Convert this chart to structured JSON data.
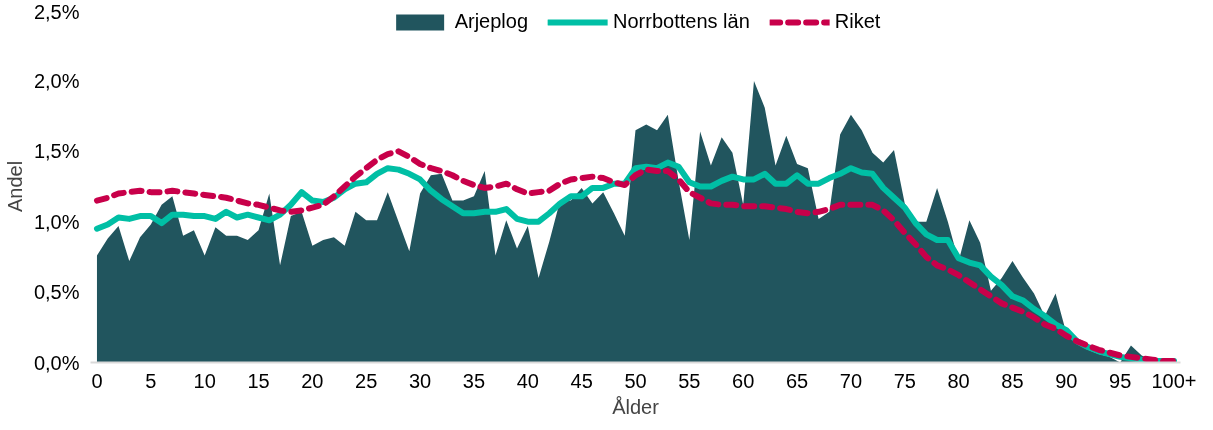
{
  "chart_data": {
    "type": "line",
    "xlabel": "Ålder",
    "ylabel": "Andel",
    "x": [
      0,
      1,
      2,
      3,
      4,
      5,
      6,
      7,
      8,
      9,
      10,
      11,
      12,
      13,
      14,
      15,
      16,
      17,
      18,
      19,
      20,
      21,
      22,
      23,
      24,
      25,
      26,
      27,
      28,
      29,
      30,
      31,
      32,
      33,
      34,
      35,
      36,
      37,
      38,
      39,
      40,
      41,
      42,
      43,
      44,
      45,
      46,
      47,
      48,
      49,
      50,
      51,
      52,
      53,
      54,
      55,
      56,
      57,
      58,
      59,
      60,
      61,
      62,
      63,
      64,
      65,
      66,
      67,
      68,
      69,
      70,
      71,
      72,
      73,
      74,
      75,
      76,
      77,
      78,
      79,
      80,
      81,
      82,
      83,
      84,
      85,
      86,
      87,
      88,
      89,
      90,
      91,
      92,
      93,
      94,
      95,
      96,
      97,
      98,
      99,
      100
    ],
    "xlim": [
      -0.6,
      100.6
    ],
    "xticks": [
      0,
      5,
      10,
      15,
      20,
      25,
      30,
      35,
      40,
      45,
      50,
      55,
      60,
      65,
      70,
      75,
      80,
      85,
      90,
      95,
      {
        "value": 100,
        "label": "100+"
      }
    ],
    "ylim": [
      0,
      2.5
    ],
    "yticks": [
      {
        "value": 0,
        "label": "0,0%"
      },
      {
        "value": 0.5,
        "label": "0,5%"
      },
      {
        "value": 1,
        "label": "1,0%"
      },
      {
        "value": 1.5,
        "label": "1,5%"
      },
      {
        "value": 2,
        "label": "2,0%"
      },
      {
        "value": 2.5,
        "label": "2,5%"
      }
    ],
    "legend": "top",
    "grid": false,
    "series": [
      {
        "name": "Arjeplog",
        "type": "area",
        "color": "#21555e",
        "values": [
          0.76,
          0.88,
          0.97,
          0.72,
          0.89,
          0.98,
          1.12,
          1.18,
          0.9,
          0.94,
          0.76,
          0.96,
          0.9,
          0.9,
          0.87,
          0.94,
          1.2,
          0.69,
          1.04,
          1.07,
          0.83,
          0.87,
          0.89,
          0.83,
          1.07,
          1.01,
          1.01,
          1.21,
          1.0,
          0.79,
          1.2,
          1.33,
          1.34,
          1.15,
          1.15,
          1.18,
          1.36,
          0.76,
          1.01,
          0.81,
          0.97,
          0.6,
          0.86,
          1.15,
          1.15,
          1.24,
          1.13,
          1.21,
          1.06,
          0.9,
          1.65,
          1.69,
          1.65,
          1.76,
          1.29,
          0.87,
          1.64,
          1.4,
          1.6,
          1.49,
          1.12,
          2.0,
          1.81,
          1.4,
          1.61,
          1.41,
          1.38,
          1.02,
          1.07,
          1.62,
          1.76,
          1.65,
          1.49,
          1.42,
          1.51,
          1.13,
          1.0,
          1.0,
          1.24,
          1.0,
          0.72,
          1.01,
          0.85,
          0.51,
          0.6,
          0.72,
          0.6,
          0.49,
          0.33,
          0.49,
          0.21,
          0.13,
          0.09,
          0.06,
          0.04,
          0.0,
          0.12,
          0.05,
          0.01,
          0.0,
          0.0
        ]
      },
      {
        "name": "Norrbottens län",
        "line_style": "solid",
        "color": "#00bfa5",
        "values": [
          0.95,
          0.98,
          1.03,
          1.02,
          1.04,
          1.04,
          0.99,
          1.05,
          1.05,
          1.04,
          1.04,
          1.02,
          1.07,
          1.03,
          1.05,
          1.03,
          1.01,
          1.05,
          1.12,
          1.21,
          1.15,
          1.14,
          1.17,
          1.23,
          1.27,
          1.28,
          1.34,
          1.38,
          1.37,
          1.34,
          1.3,
          1.22,
          1.16,
          1.11,
          1.06,
          1.06,
          1.07,
          1.07,
          1.09,
          1.02,
          1.0,
          1.0,
          1.06,
          1.13,
          1.18,
          1.18,
          1.24,
          1.24,
          1.27,
          1.27,
          1.38,
          1.39,
          1.38,
          1.42,
          1.39,
          1.28,
          1.25,
          1.25,
          1.29,
          1.32,
          1.3,
          1.3,
          1.34,
          1.27,
          1.27,
          1.33,
          1.27,
          1.27,
          1.31,
          1.34,
          1.38,
          1.35,
          1.34,
          1.24,
          1.17,
          1.1,
          0.99,
          0.91,
          0.87,
          0.87,
          0.74,
          0.71,
          0.69,
          0.61,
          0.55,
          0.47,
          0.44,
          0.38,
          0.33,
          0.27,
          0.23,
          0.15,
          0.11,
          0.08,
          0.06,
          0.04,
          0.03,
          0.02,
          0.01,
          0.01,
          0.01
        ]
      },
      {
        "name": "Riket",
        "line_style": "dashed",
        "color": "#c8004a",
        "values": [
          1.15,
          1.17,
          1.2,
          1.21,
          1.22,
          1.21,
          1.21,
          1.22,
          1.21,
          1.2,
          1.19,
          1.18,
          1.17,
          1.15,
          1.13,
          1.12,
          1.1,
          1.08,
          1.07,
          1.08,
          1.1,
          1.12,
          1.18,
          1.25,
          1.32,
          1.38,
          1.44,
          1.48,
          1.5,
          1.46,
          1.41,
          1.38,
          1.36,
          1.33,
          1.29,
          1.26,
          1.24,
          1.25,
          1.27,
          1.23,
          1.2,
          1.21,
          1.22,
          1.27,
          1.3,
          1.31,
          1.32,
          1.31,
          1.28,
          1.26,
          1.33,
          1.37,
          1.36,
          1.36,
          1.3,
          1.21,
          1.17,
          1.13,
          1.12,
          1.12,
          1.11,
          1.11,
          1.11,
          1.1,
          1.09,
          1.07,
          1.06,
          1.07,
          1.09,
          1.12,
          1.12,
          1.12,
          1.12,
          1.08,
          1.01,
          0.92,
          0.84,
          0.75,
          0.69,
          0.66,
          0.62,
          0.57,
          0.52,
          0.47,
          0.42,
          0.39,
          0.36,
          0.32,
          0.27,
          0.24,
          0.19,
          0.15,
          0.12,
          0.09,
          0.07,
          0.05,
          0.04,
          0.03,
          0.02,
          0.01,
          0.01
        ]
      }
    ]
  }
}
